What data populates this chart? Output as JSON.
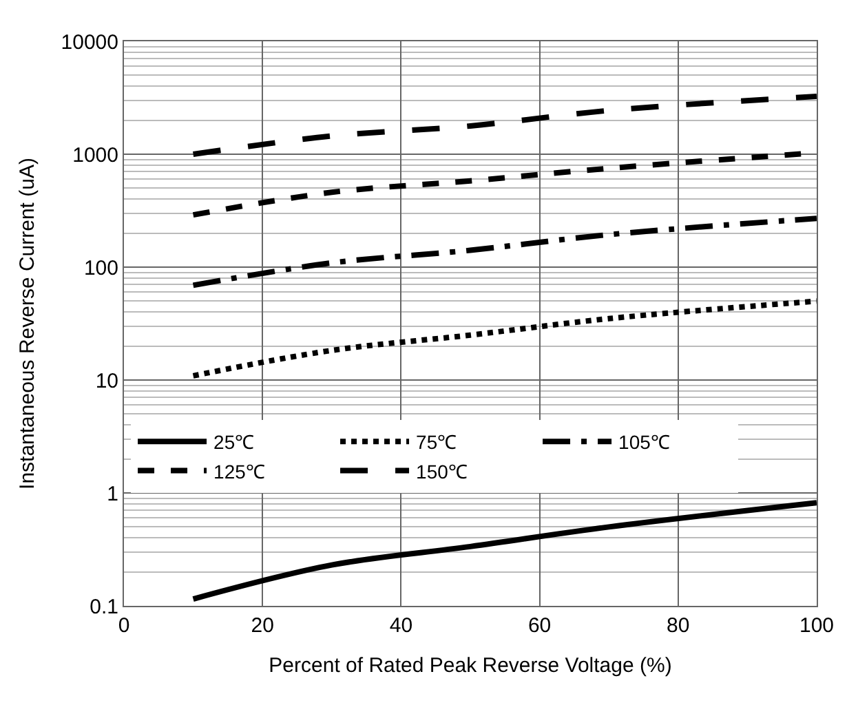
{
  "chart_data": {
    "type": "line",
    "xlabel": "Percent of Rated Peak Reverse Voltage (%)",
    "ylabel": "Instantaneous Reverse Current (uA)",
    "x": [
      10,
      30,
      50,
      70,
      100
    ],
    "series": [
      {
        "name": "25℃",
        "color": "#000000",
        "line_style": "solid",
        "values": [
          0.115,
          0.23,
          0.335,
          0.5,
          0.82
        ]
      },
      {
        "name": "75℃",
        "color": "#000000",
        "line_style": "dotted",
        "values": [
          10.9,
          18.3,
          25,
          35,
          50
        ]
      },
      {
        "name": "105℃",
        "color": "#000000",
        "line_style": "dashdot",
        "values": [
          69,
          109,
          141,
          194,
          270
        ]
      },
      {
        "name": "125℃",
        "color": "#000000",
        "line_style": "dashed",
        "values": [
          290,
          460,
          580,
          750,
          1030
        ]
      },
      {
        "name": "150℃",
        "color": "#000000",
        "line_style": "longdash",
        "values": [
          1000,
          1450,
          1780,
          2440,
          3250
        ]
      }
    ],
    "log": "y",
    "xlim": [
      0,
      100
    ],
    "xticks": [
      0,
      20,
      40,
      60,
      80,
      100
    ],
    "ylim": [
      0.1,
      10000
    ],
    "yticks": [
      0.1,
      1,
      10,
      100,
      1000,
      10000
    ],
    "grid": true,
    "legend": "bottom left",
    "marker": "none"
  }
}
